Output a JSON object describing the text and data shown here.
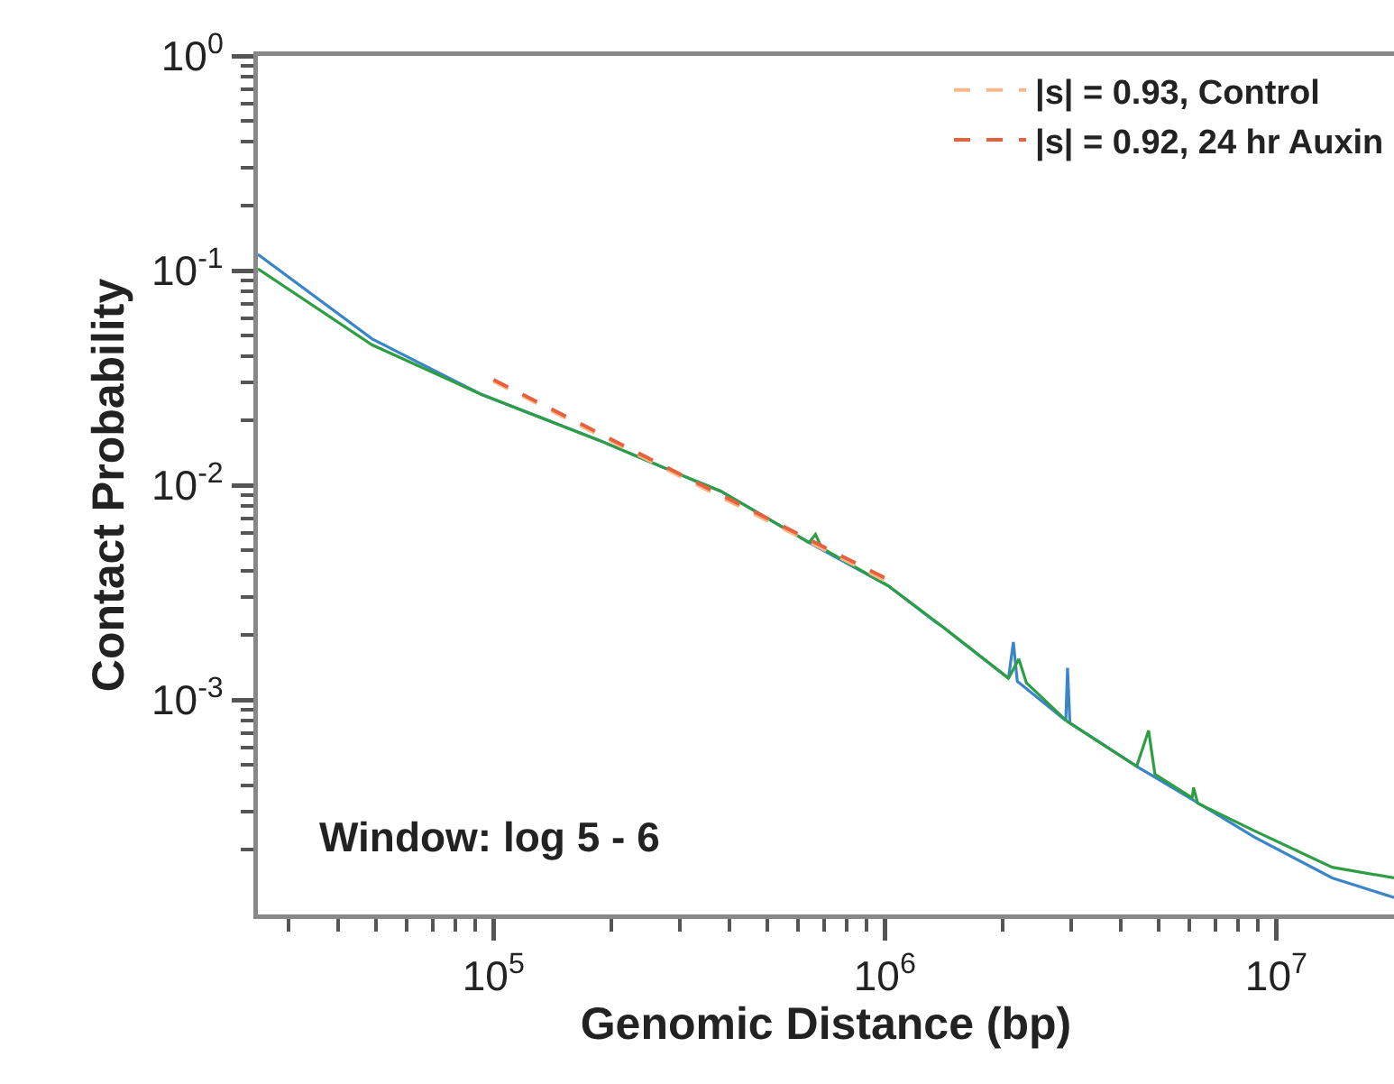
{
  "chart_data": {
    "type": "line",
    "xlabel": "Genomic Distance (bp)",
    "ylabel": "Contact Probability",
    "log": "xy",
    "grid": false,
    "legend": "top right",
    "marker": "none",
    "xlim": [
      25000,
      20000000
    ],
    "ylim": [
      0.0001,
      1
    ],
    "xticks": [
      {
        "value": 30000,
        "label": null
      },
      {
        "value": 40000,
        "label": null
      },
      {
        "value": 50000,
        "label": null
      },
      {
        "value": 60000,
        "label": null
      },
      {
        "value": 70000,
        "label": null
      },
      {
        "value": 80000,
        "label": null
      },
      {
        "value": 90000,
        "label": null
      },
      {
        "value": 100000,
        "label": "10$^{5}$"
      },
      {
        "value": 200000,
        "label": null
      },
      {
        "value": 300000,
        "label": null
      },
      {
        "value": 400000,
        "label": null
      },
      {
        "value": 500000,
        "label": null
      },
      {
        "value": 600000,
        "label": null
      },
      {
        "value": 700000,
        "label": null
      },
      {
        "value": 800000,
        "label": null
      },
      {
        "value": 900000,
        "label": null
      },
      {
        "value": 1000000,
        "label": "10$^{6}$"
      },
      {
        "value": 2000000,
        "label": null
      },
      {
        "value": 3000000,
        "label": null
      },
      {
        "value": 4000000,
        "label": null
      },
      {
        "value": 5000000,
        "label": null
      },
      {
        "value": 6000000,
        "label": null
      },
      {
        "value": 7000000,
        "label": null
      },
      {
        "value": 8000000,
        "label": null
      },
      {
        "value": 9000000,
        "label": null
      },
      {
        "value": 10000000,
        "label": "10$^{7}$"
      }
    ],
    "yticks": [
      {
        "value": 0.0002,
        "label": null
      },
      {
        "value": 0.0003,
        "label": null
      },
      {
        "value": 0.0004,
        "label": null
      },
      {
        "value": 0.0005,
        "label": null
      },
      {
        "value": 0.0006,
        "label": null
      },
      {
        "value": 0.0007,
        "label": null
      },
      {
        "value": 0.0008,
        "label": null
      },
      {
        "value": 0.0009,
        "label": null
      },
      {
        "value": 0.001,
        "label": "10$^{-3}$"
      },
      {
        "value": 0.002,
        "label": null
      },
      {
        "value": 0.003,
        "label": null
      },
      {
        "value": 0.004,
        "label": null
      },
      {
        "value": 0.005,
        "label": null
      },
      {
        "value": 0.006,
        "label": null
      },
      {
        "value": 0.007,
        "label": null
      },
      {
        "value": 0.008,
        "label": null
      },
      {
        "value": 0.009,
        "label": null
      },
      {
        "value": 0.01,
        "label": "10$^{-2}$"
      },
      {
        "value": 0.02,
        "label": null
      },
      {
        "value": 0.03,
        "label": null
      },
      {
        "value": 0.04,
        "label": null
      },
      {
        "value": 0.05,
        "label": null
      },
      {
        "value": 0.06,
        "label": null
      },
      {
        "value": 0.07,
        "label": null
      },
      {
        "value": 0.08,
        "label": null
      },
      {
        "value": 0.09,
        "label": null
      },
      {
        "value": 0.1,
        "label": "10$^{-1}$"
      },
      {
        "value": 0.2,
        "label": null
      },
      {
        "value": 0.3,
        "label": null
      },
      {
        "value": 0.4,
        "label": null
      },
      {
        "value": 0.5,
        "label": null
      },
      {
        "value": 0.6,
        "label": null
      },
      {
        "value": 0.7,
        "label": null
      },
      {
        "value": 0.8,
        "label": null
      },
      {
        "value": 0.9,
        "label": null
      },
      {
        "value": 1,
        "label": "10$^{0}$"
      }
    ],
    "annotations": [
      "Window: log 5 - 6"
    ],
    "series": [
      {
        "color": "#3a85c8",
        "line_style": "solid",
        "x": [
          25000,
          49000,
          93000,
          186000,
          307000,
          380000,
          665000,
          1020000,
          1350000,
          1400000,
          2070000,
          2130000,
          2180000,
          2900000,
          2930000,
          2970000,
          4480000,
          6150000,
          8810000,
          13900000,
          20000000
        ],
        "values": [
          0.119,
          0.048,
          0.0265,
          0.0162,
          0.011,
          0.0094,
          0.0052,
          0.0034,
          0.0023,
          0.0022,
          0.00126,
          0.00186,
          0.00122,
          0.0008,
          0.00141,
          0.00078,
          0.00048,
          0.00034,
          0.000229,
          0.000148,
          0.00012
        ]
      },
      {
        "color": "#2e9e44",
        "line_style": "solid",
        "x": [
          25000,
          49000,
          93000,
          186000,
          307000,
          380000,
          640000,
          665000,
          690000,
          1020000,
          1400000,
          2070000,
          2200000,
          2300000,
          2930000,
          4400000,
          4720000,
          4900000,
          6100000,
          6150000,
          6300000,
          8810000,
          13900000,
          20000000
        ],
        "values": [
          0.102,
          0.045,
          0.0265,
          0.0162,
          0.011,
          0.0094,
          0.0054,
          0.0059,
          0.0051,
          0.0034,
          0.0022,
          0.00126,
          0.00155,
          0.0012,
          0.00079,
          0.00049,
          0.00072,
          0.00045,
          0.00035,
          0.00039,
          0.00033,
          0.000245,
          0.000166,
          0.000148
        ]
      },
      {
        "name": "|s| = 0.93, Control",
        "color": "#f8b98a",
        "line_style": "dashed",
        "x": [
          100000,
          1000000
        ],
        "values": [
          0.0305,
          0.0036
        ]
      },
      {
        "name": "|s| = 0.92, 24 hr Auxin",
        "color": "#e8603c",
        "line_style": "dashed",
        "x": [
          100000,
          1000000
        ],
        "values": [
          0.031,
          0.0037
        ]
      }
    ]
  }
}
